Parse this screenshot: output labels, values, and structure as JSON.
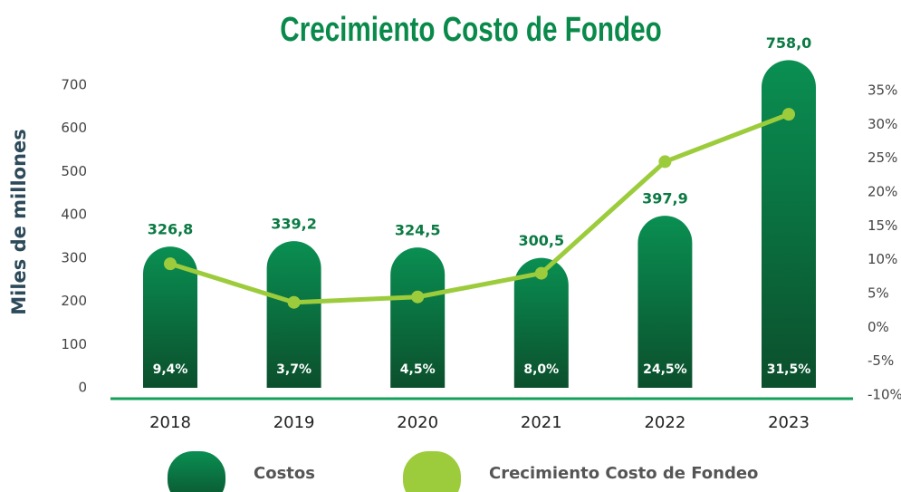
{
  "chart_data": {
    "type": "bar_line",
    "title": "Crecimiento Costo de Fondeo",
    "y_label": "Miles de millones",
    "categories": [
      "2018",
      "2019",
      "2020",
      "2021",
      "2022",
      "2023"
    ],
    "series": [
      {
        "name": "Costos",
        "color": "#0b7a43",
        "values": [
          326.8,
          339.2,
          324.5,
          300.5,
          397.9,
          758.0
        ],
        "value_labels": [
          "326,8",
          "339,2",
          "324,5",
          "300,5",
          "397,9",
          "758,0"
        ]
      },
      {
        "name": "Crecimiento Costo de Fondeo",
        "color": "#9ccc3c",
        "axis": "y2",
        "values": [
          9.4,
          3.7,
          4.5,
          8.0,
          24.5,
          31.5
        ],
        "value_labels": [
          "9,4%",
          "3,7%",
          "4,5%",
          "8,0%",
          "24,5%",
          "31,5%"
        ]
      }
    ],
    "ylim": [
      0,
      700
    ],
    "yticks": [
      0,
      100,
      200,
      300,
      400,
      500,
      600,
      700
    ],
    "y2lim": [
      -10,
      35
    ],
    "y2ticks": [
      {
        "value": -10,
        "label": "-10%"
      },
      {
        "value": -5,
        "label": "-5%"
      },
      {
        "value": 0,
        "label": "0%"
      },
      {
        "value": 5,
        "label": "5%"
      },
      {
        "value": 10,
        "label": "10%"
      },
      {
        "value": 15,
        "label": "15%"
      },
      {
        "value": 20,
        "label": "20%"
      },
      {
        "value": 25,
        "label": "25%"
      },
      {
        "value": 30,
        "label": "30%"
      },
      {
        "value": 35,
        "label": "35%"
      }
    ]
  }
}
